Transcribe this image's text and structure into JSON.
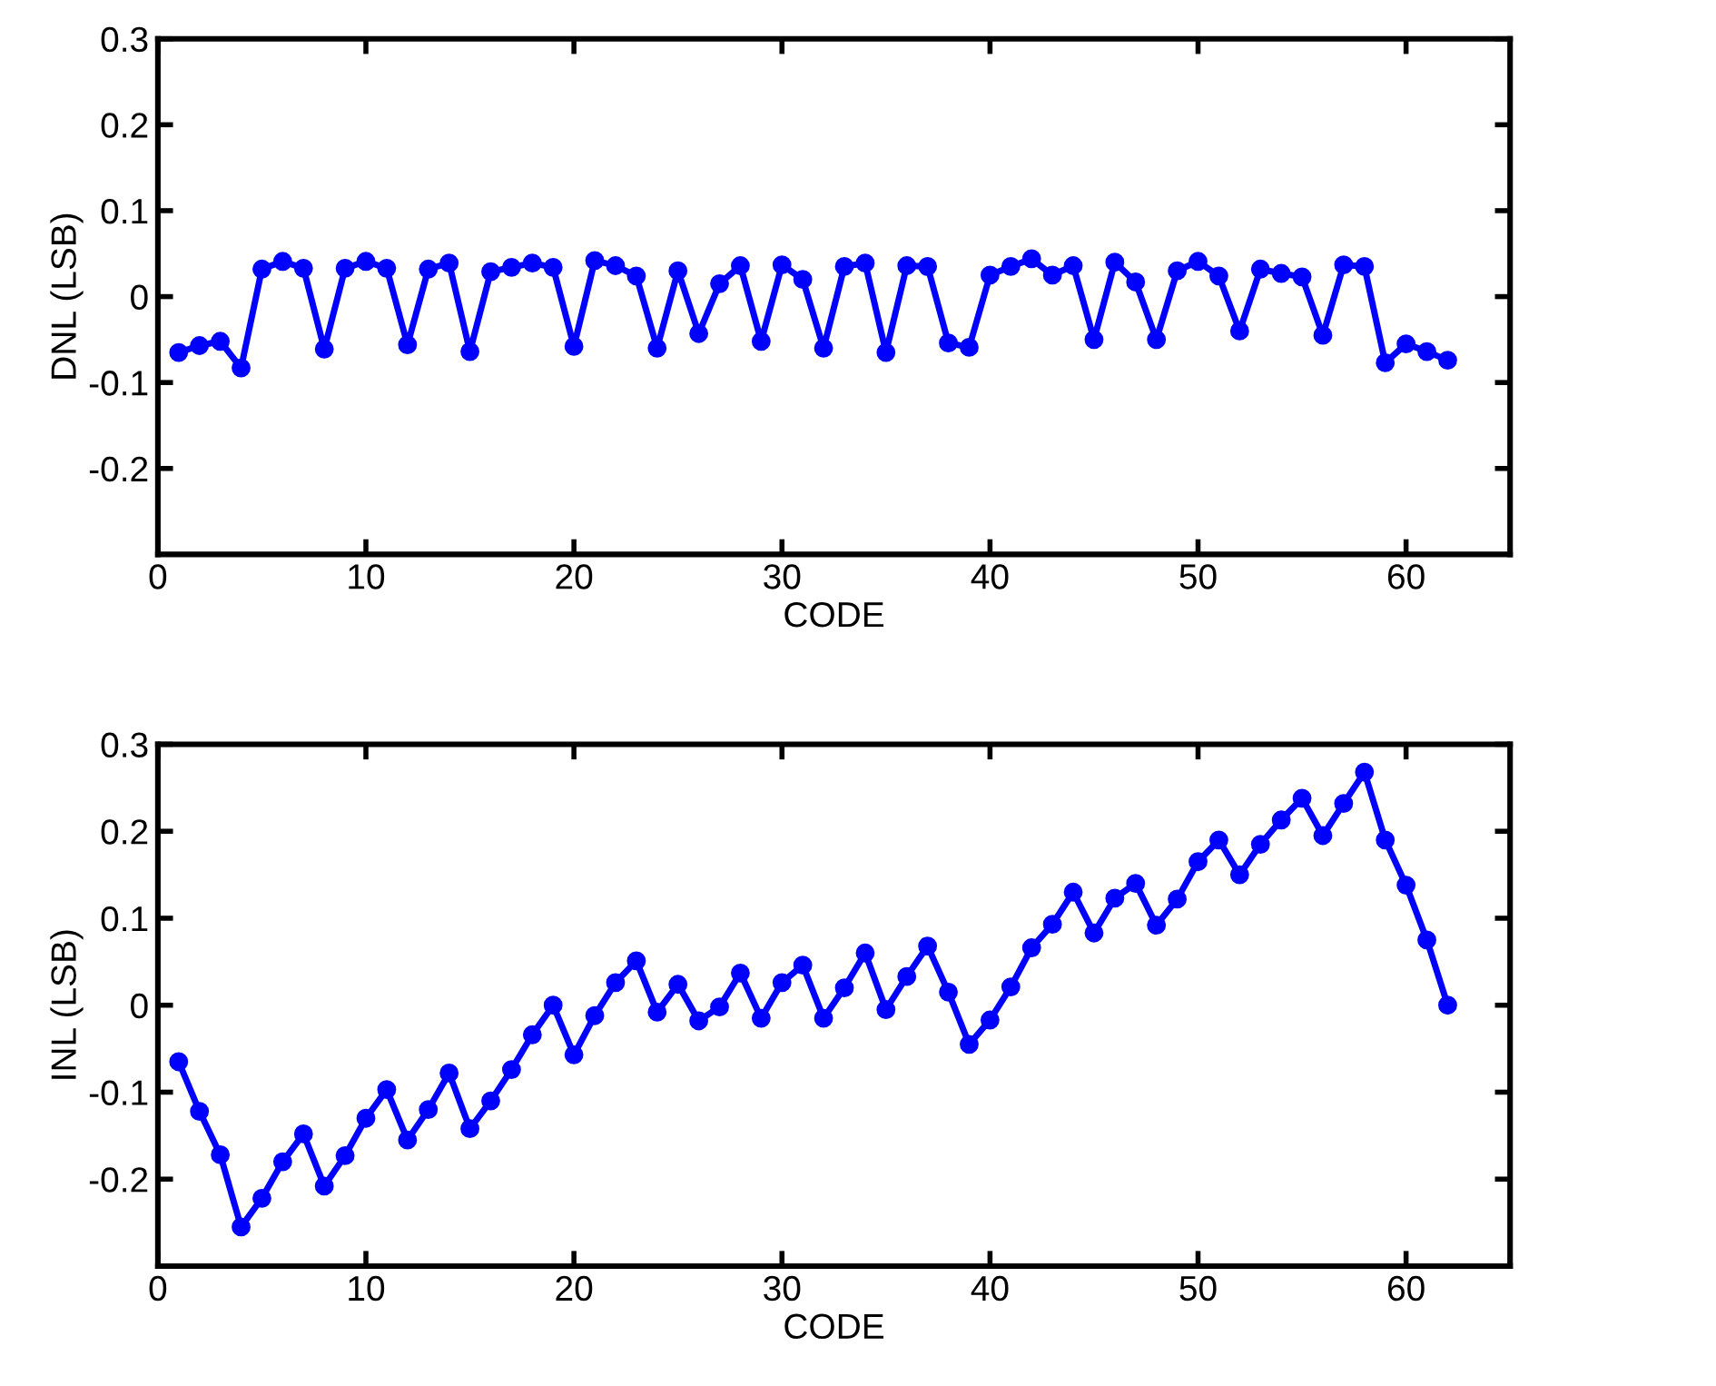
{
  "chart_data": [
    {
      "type": "line",
      "xlabel": "CODE",
      "ylabel": "DNL (LSB)",
      "x": [
        1,
        2,
        3,
        4,
        5,
        6,
        7,
        8,
        9,
        10,
        11,
        12,
        13,
        14,
        15,
        16,
        17,
        18,
        19,
        20,
        21,
        22,
        23,
        24,
        25,
        26,
        27,
        28,
        29,
        30,
        31,
        32,
        33,
        34,
        35,
        36,
        37,
        38,
        39,
        40,
        41,
        42,
        43,
        44,
        45,
        46,
        47,
        48,
        49,
        50,
        51,
        52,
        53,
        54,
        55,
        56,
        57,
        58,
        59,
        60,
        61,
        62
      ],
      "series": [
        {
          "color": "#0000ff",
          "values": [
            -0.065,
            -0.057,
            -0.052,
            -0.083,
            0.032,
            0.041,
            0.033,
            -0.061,
            0.033,
            0.041,
            0.033,
            -0.056,
            0.032,
            0.039,
            -0.064,
            0.029,
            0.034,
            0.039,
            0.034,
            -0.058,
            0.042,
            0.036,
            0.024,
            -0.06,
            0.03,
            -0.043,
            0.015,
            0.036,
            -0.052,
            0.037,
            0.02,
            -0.06,
            0.035,
            0.039,
            -0.065,
            0.036,
            0.035,
            -0.054,
            -0.059,
            0.025,
            0.035,
            0.044,
            0.025,
            0.036,
            -0.05,
            0.04,
            0.017,
            -0.05,
            0.03,
            0.041,
            0.024,
            -0.04,
            0.032,
            0.027,
            0.023,
            -0.045,
            0.037,
            0.035,
            -0.077,
            -0.055,
            -0.064,
            -0.074
          ]
        }
      ],
      "xlim": [
        0,
        65
      ],
      "xticks": [
        0,
        10,
        20,
        30,
        40,
        50,
        60
      ],
      "ylim": [
        -0.3,
        0.3
      ],
      "yticks": [
        -0.2,
        -0.1,
        0,
        0.1,
        0.2,
        0.3
      ],
      "marker": "circle",
      "line_style": "solid"
    },
    {
      "type": "line",
      "xlabel": "CODE",
      "ylabel": "INL (LSB)",
      "x": [
        1,
        2,
        3,
        4,
        5,
        6,
        7,
        8,
        9,
        10,
        11,
        12,
        13,
        14,
        15,
        16,
        17,
        18,
        19,
        20,
        21,
        22,
        23,
        24,
        25,
        26,
        27,
        28,
        29,
        30,
        31,
        32,
        33,
        34,
        35,
        36,
        37,
        38,
        39,
        40,
        41,
        42,
        43,
        44,
        45,
        46,
        47,
        48,
        49,
        50,
        51,
        52,
        53,
        54,
        55,
        56,
        57,
        58,
        59,
        60,
        61,
        62
      ],
      "series": [
        {
          "color": "#0000ff",
          "values": [
            -0.065,
            -0.122,
            -0.172,
            -0.255,
            -0.222,
            -0.18,
            -0.148,
            -0.208,
            -0.173,
            -0.13,
            -0.097,
            -0.155,
            -0.12,
            -0.078,
            -0.142,
            -0.11,
            -0.074,
            -0.034,
            0.0,
            -0.057,
            -0.012,
            0.026,
            0.051,
            -0.008,
            0.024,
            -0.018,
            -0.002,
            0.037,
            -0.015,
            0.026,
            0.046,
            -0.015,
            0.02,
            0.06,
            -0.005,
            0.033,
            0.068,
            0.015,
            -0.045,
            -0.017,
            0.021,
            0.066,
            0.093,
            0.13,
            0.083,
            0.123,
            0.14,
            0.092,
            0.122,
            0.165,
            0.19,
            0.15,
            0.185,
            0.213,
            0.238,
            0.195,
            0.232,
            0.268,
            0.19,
            0.138,
            0.075,
            0.0
          ]
        }
      ],
      "xlim": [
        0,
        65
      ],
      "xticks": [
        0,
        10,
        20,
        30,
        40,
        50,
        60
      ],
      "ylim": [
        -0.3,
        0.3
      ],
      "yticks": [
        -0.2,
        -0.1,
        0,
        0.1,
        0.2,
        0.3
      ],
      "marker": "circle",
      "line_style": "solid"
    }
  ]
}
